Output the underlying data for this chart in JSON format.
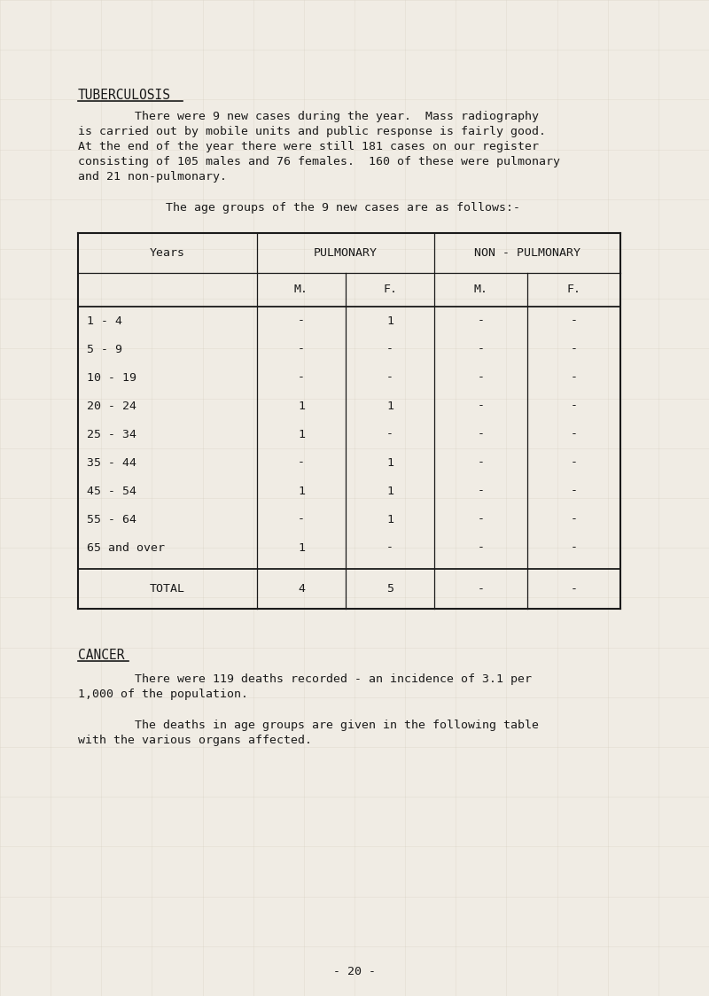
{
  "bg_color": "#f0ece4",
  "text_color": "#1a1a1a",
  "page_width": 8.0,
  "page_height": 11.24,
  "title1": "TUBERCULOSIS",
  "para1_lines": [
    "        There were 9 new cases during the year.  Mass radiography",
    "is carried out by mobile units and public response is fairly good.",
    "At the end of the year there were still 181 cases on our register",
    "consisting of 105 males and 76 females.  160 of these were pulmonary",
    "and 21 non-pulmonary."
  ],
  "para2": "        The age groups of the 9 new cases are as follows:-",
  "table_col_header1": [
    "Years",
    "PULMONARY",
    "NON - PULMONARY"
  ],
  "table_col_header2": [
    "M.",
    "F.",
    "M.",
    "F."
  ],
  "table_rows": [
    [
      "1 - 4",
      "-",
      "1",
      "-",
      "-"
    ],
    [
      "5 - 9",
      "-",
      "-",
      "-",
      "-"
    ],
    [
      "10 - 19",
      "-",
      "-",
      "-",
      "-"
    ],
    [
      "20 - 24",
      "1",
      "1",
      "-",
      "-"
    ],
    [
      "25 - 34",
      "1",
      "-",
      "-",
      "-"
    ],
    [
      "35 - 44",
      "-",
      "1",
      "-",
      "-"
    ],
    [
      "45 - 54",
      "1",
      "1",
      "-",
      "-"
    ],
    [
      "55 - 64",
      "-",
      "1",
      "-",
      "-"
    ],
    [
      "65 and over",
      "1",
      "-",
      "-",
      "-"
    ]
  ],
  "table_total_row": [
    "TOTAL",
    "4",
    "5",
    "-",
    "-"
  ],
  "title2": "CANCER",
  "para3_lines": [
    "        There were 119 deaths recorded - an incidence of 3.1 per",
    "1,000 of the population."
  ],
  "para4_lines": [
    "        The deaths in age groups are given in the following table",
    "with the various organs affected."
  ],
  "page_number": "- 20 -",
  "grid_color": "#c8c0b0",
  "grid_alpha": 0.35,
  "font_size_body": 9.5,
  "font_size_title": 10.5,
  "font_size_table": 9.5,
  "font_family": "DejaVu Sans Mono"
}
